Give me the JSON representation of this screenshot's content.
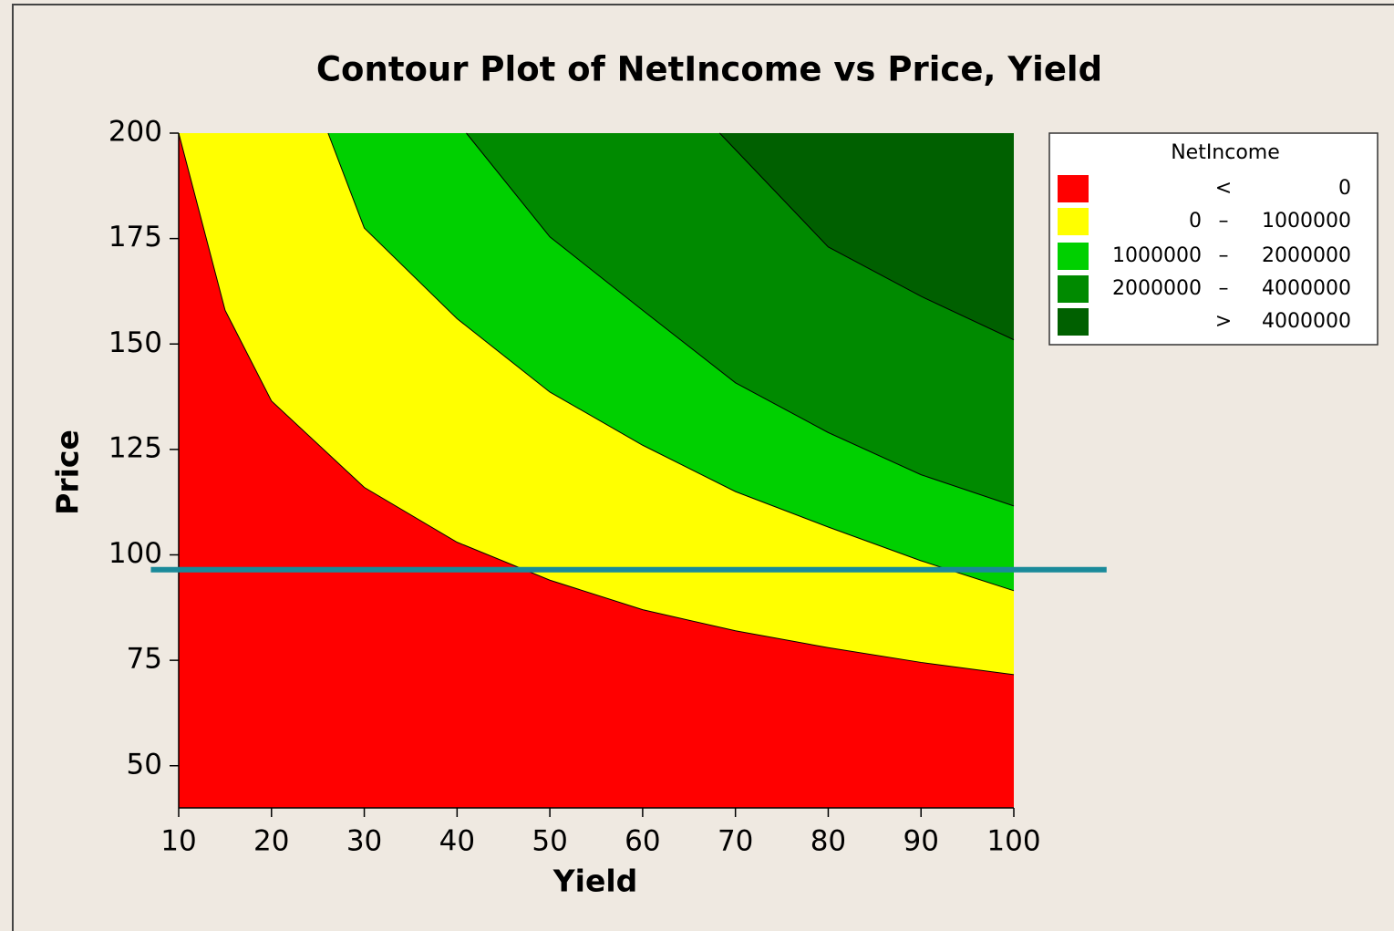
{
  "chart_data": {
    "type": "contour",
    "title": "Contour Plot of NetIncome vs Price, Yield",
    "x_label": "Yield",
    "y_label": "Price",
    "xlim": [
      10,
      100
    ],
    "ylim": [
      40,
      200
    ],
    "xticks": [
      10,
      20,
      30,
      40,
      50,
      60,
      70,
      80,
      90,
      100
    ],
    "yticks": [
      50,
      75,
      100,
      125,
      150,
      175,
      200
    ],
    "legend_title": "NetIncome",
    "legend_position": "right",
    "levels": [
      {
        "color": "#ff0000",
        "symbol": "<",
        "high": 0
      },
      {
        "color": "#ffff00",
        "low": 0,
        "symbol": "–",
        "high": 1000000
      },
      {
        "color": "#00d000",
        "low": 1000000,
        "symbol": "–",
        "high": 2000000
      },
      {
        "color": "#008a00",
        "low": 2000000,
        "symbol": "–",
        "high": 4000000
      },
      {
        "color": "#006000",
        "symbol": ">",
        "high": 4000000
      }
    ],
    "boundaries": [
      {
        "x": [
          10,
          15,
          20,
          30,
          40,
          50,
          60,
          70,
          80,
          90,
          100
        ],
        "y": [
          200,
          158,
          136.5,
          116,
          103,
          94,
          87,
          82,
          78,
          74.5,
          71.6
        ]
      },
      {
        "x": [
          26.1,
          30,
          40,
          50,
          60,
          70,
          80,
          90,
          100
        ],
        "y": [
          200,
          177.5,
          156,
          138.6,
          126,
          115,
          106.6,
          98.6,
          91.5
        ]
      },
      {
        "x": [
          41,
          50,
          60,
          70,
          80,
          90,
          100
        ],
        "y": [
          200,
          175.4,
          158,
          140.8,
          129,
          119,
          111.6
        ]
      },
      {
        "x": [
          68.3,
          80,
          90,
          100
        ],
        "y": [
          200,
          173,
          161.3,
          151
        ]
      }
    ],
    "reference_line": {
      "y": 96.5,
      "x": [
        7,
        110
      ],
      "color": "#1a8a9a"
    }
  }
}
